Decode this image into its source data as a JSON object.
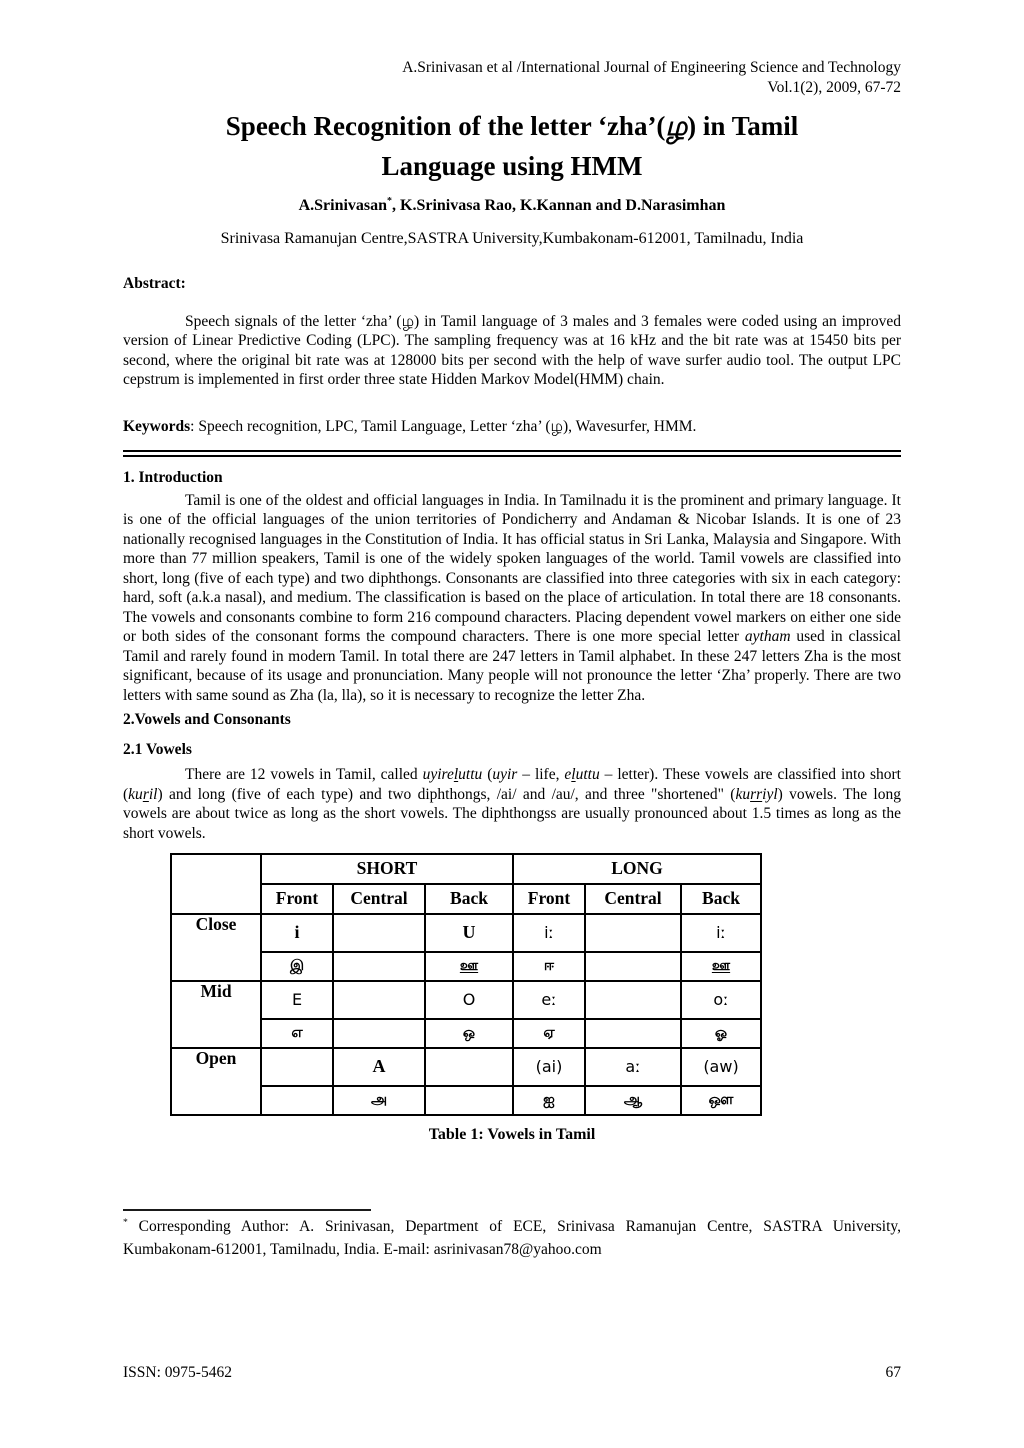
{
  "header": {
    "line1": "A.Srinivasan et al /International Journal of Engineering Science and Technology",
    "line2": "Vol.1(2), 2009, 67-72"
  },
  "title1": [
    {
      "t": "Speech Recognition of the letter ‘zha’(",
      "s": "n"
    },
    {
      "t": "ழ",
      "s": "i"
    },
    {
      "t": ") in Tamil",
      "s": "n"
    }
  ],
  "title2": "Language using HMM",
  "authors": [
    {
      "t": "A.Srinivasan",
      "s": "n"
    },
    {
      "t": "*",
      "s": "sup"
    },
    {
      "t": ", K.Srinivasa Rao, K.Kannan and D.Narasimhan",
      "s": "n"
    }
  ],
  "affiliation": "Srinivasa Ramanujan Centre,SASTRA University,Kumbakonam-612001, Tamilnadu, India",
  "abstract": {
    "heading": "Abstract:",
    "body": "Speech signals of the letter ‘zha’ (ழ) in Tamil language of 3 males and 3 females were coded using an improved version of Linear Predictive Coding (LPC). The sampling frequency was at 16 kHz and the bit rate was at 15450 bits per second, where the original bit rate was at 128000 bits per second with the help of wave surfer audio tool. The output LPC cepstrum is implemented in first order three state Hidden Markov Model(HMM) chain."
  },
  "keywords": [
    {
      "t": "Keywords",
      "s": "b"
    },
    {
      "t": ": Speech recognition, LPC, Tamil Language, Letter ‘zha’ (ழ), Wavesurfer, HMM.",
      "s": "n"
    }
  ],
  "intro_heading": "1. Introduction",
  "intro": [
    {
      "t": "Tamil is one of the oldest and official languages in India. In Tamilnadu it is the prominent and primary language. It is one of the official languages of the union territories of Pondicherry and Andaman & Nicobar Islands. It is one of 23 nationally recognised languages in the Constitution of India. It has official status in Sri Lanka, Malaysia and Singapore. With more than 77 million speakers, Tamil is one of the widely spoken languages of the world. Tamil vowels are classified into short, long (five of each type) and two diphthongs. Consonants are classified into three categories with six in each category: hard, soft (a.k.a nasal), and medium. The classification is based on the place of articulation. In total there are 18 consonants. The vowels and consonants combine to form 216 compound characters. Placing dependent vowel markers on either one side or both sides of the consonant forms the compound characters. There is one more special letter ",
      "s": "n"
    },
    {
      "t": "aytham",
      "s": "i"
    },
    {
      "t": " used in classical Tamil and rarely found in modern Tamil. In total there are 247 letters in Tamil alphabet. In these 247 letters Zha is the most significant, because of its usage and pronunciation. Many people will not pronounce the letter ‘Zha’ properly. There are two letters with same sound as Zha (la, lla), so it is necessary to recognize the letter Zha.",
      "s": "n"
    }
  ],
  "s2_heading": "2.Vowels and Consonants",
  "s21_heading": "2.1 Vowels",
  "vowels": [
    {
      "t": "There are 12 vowels in Tamil, called ",
      "s": "n"
    },
    {
      "t": "uyire",
      "s": "i"
    },
    {
      "t": "l",
      "s": "iu"
    },
    {
      "t": "uttu",
      "s": "i"
    },
    {
      "t": " (",
      "s": "n"
    },
    {
      "t": "uyir",
      "s": "i"
    },
    {
      "t": " – life, ",
      "s": "n"
    },
    {
      "t": "e",
      "s": "i"
    },
    {
      "t": "l",
      "s": "iu"
    },
    {
      "t": "uttu",
      "s": "i"
    },
    {
      "t": " – letter). These vowels are classified into short (",
      "s": "n"
    },
    {
      "t": "ku",
      "s": "i"
    },
    {
      "t": "r",
      "s": "iu"
    },
    {
      "t": "il",
      "s": "i"
    },
    {
      "t": ") and long (five of each type) and two diphthongs, /ai/ and /au/, and three \"shortened\" (",
      "s": "n"
    },
    {
      "t": "ku",
      "s": "i"
    },
    {
      "t": "rr",
      "s": "iu"
    },
    {
      "t": "iyl",
      "s": "i"
    },
    {
      "t": ") vowels. The long  vowels are about twice as long as the short vowels. The diphthongss are usually pronounced about 1.5 times as long as the short vowels.",
      "s": "n"
    }
  ],
  "table": {
    "caption": "Table 1: Vowels in Tamil",
    "groups": [
      "SHORT",
      "LONG"
    ],
    "sub": [
      "Front",
      "Central",
      "Back",
      "Front",
      "Central",
      "Back"
    ],
    "rows": [
      {
        "label": "Close",
        "ipa": [
          "i",
          "",
          "U",
          "iː",
          "",
          "iː"
        ],
        "tamil": [
          "இ",
          "",
          "ஊ",
          "ஈ",
          "",
          "ஊ"
        ]
      },
      {
        "label": "Mid",
        "ipa": [
          "E",
          "",
          "O",
          "eː",
          "",
          "oː"
        ],
        "tamil": [
          "எ",
          "",
          "ஒ",
          "ஏ",
          "",
          "ஓ"
        ]
      },
      {
        "label": "Open",
        "ipa": [
          "",
          "A",
          "",
          "(ai)",
          "aː",
          "(aw)"
        ],
        "tamil": [
          "",
          "அ",
          "",
          "ஐ",
          "ஆ",
          "ஔ"
        ]
      }
    ]
  },
  "footnote": [
    {
      "t": "*",
      "s": "sup"
    },
    {
      "t": " Corresponding Author: A. Srinivasan, Department of ECE, Srinivasa Ramanujan Centre, SASTRA University, Kumbakonam-612001, Tamilnadu, India.  E-mail: asrinivasan78@yahoo.com",
      "s": "n"
    }
  ],
  "footer": {
    "issn": "ISSN: 0975-5462",
    "page_number": "67"
  }
}
